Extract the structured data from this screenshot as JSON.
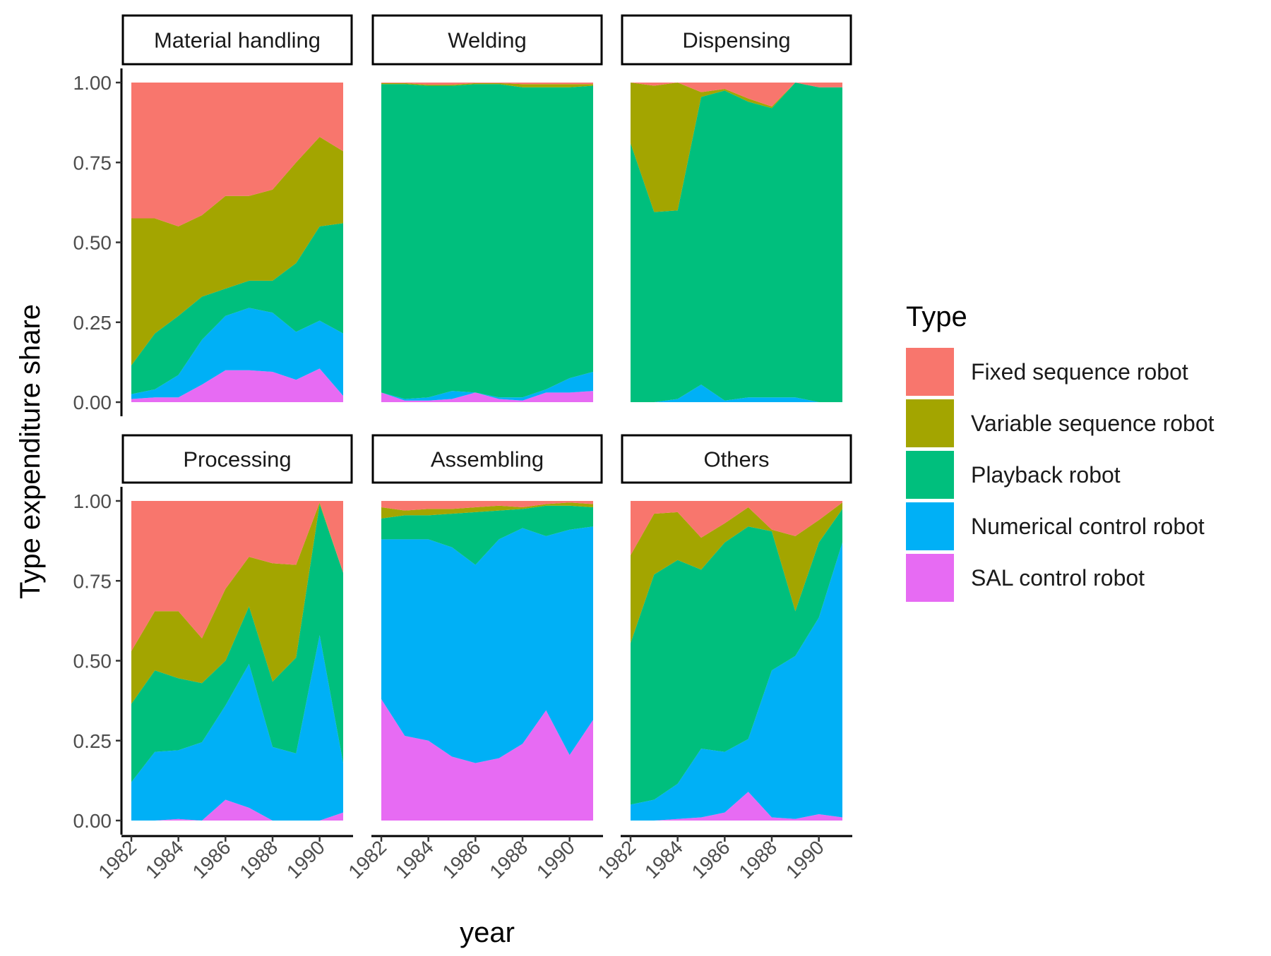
{
  "chart_data": {
    "type": "area",
    "stacked": true,
    "x_label": "year",
    "y_label": "Type expenditure share",
    "x_ticks": [
      "1982",
      "1984",
      "1986",
      "1988",
      "1990"
    ],
    "y_ticks": [
      "0.00",
      "0.25",
      "0.50",
      "0.75",
      "1.00"
    ],
    "xlim": [
      1982,
      1991
    ],
    "ylim": [
      0,
      1
    ],
    "grid": false,
    "legend": {
      "title": "Type",
      "position": "right",
      "entries": [
        {
          "name": "Fixed sequence robot",
          "color": "#F8766D"
        },
        {
          "name": "Variable sequence robot",
          "color": "#A3A500"
        },
        {
          "name": "Playback robot",
          "color": "#00BF7D"
        },
        {
          "name": "Numerical control robot",
          "color": "#00B0F6"
        },
        {
          "name": "SAL control robot",
          "color": "#E76BF3"
        }
      ]
    },
    "x": [
      1982,
      1983,
      1984,
      1985,
      1986,
      1987,
      1988,
      1989,
      1990,
      1991
    ],
    "panels": [
      {
        "name": "Material handling",
        "series": [
          {
            "name": "SAL control robot",
            "values": [
              0.01,
              0.015,
              0.015,
              0.055,
              0.1,
              0.1,
              0.095,
              0.07,
              0.105,
              0.02
            ]
          },
          {
            "name": "Numerical control robot",
            "values": [
              0.015,
              0.025,
              0.07,
              0.14,
              0.17,
              0.195,
              0.185,
              0.15,
              0.15,
              0.195
            ]
          },
          {
            "name": "Playback robot",
            "values": [
              0.09,
              0.175,
              0.185,
              0.135,
              0.085,
              0.085,
              0.1,
              0.215,
              0.295,
              0.345
            ]
          },
          {
            "name": "Variable sequence robot",
            "values": [
              0.46,
              0.36,
              0.28,
              0.255,
              0.29,
              0.265,
              0.285,
              0.315,
              0.28,
              0.225
            ]
          },
          {
            "name": "Fixed sequence robot",
            "values": [
              0.425,
              0.425,
              0.45,
              0.415,
              0.355,
              0.355,
              0.335,
              0.25,
              0.17,
              0.215
            ]
          }
        ]
      },
      {
        "name": "Welding",
        "series": [
          {
            "name": "SAL control robot",
            "values": [
              0.03,
              0.005,
              0.005,
              0.01,
              0.03,
              0.01,
              0.005,
              0.03,
              0.03,
              0.035
            ]
          },
          {
            "name": "Numerical control robot",
            "values": [
              0.0,
              0.005,
              0.01,
              0.025,
              0.0,
              0.005,
              0.01,
              0.01,
              0.045,
              0.06
            ]
          },
          {
            "name": "Playback robot",
            "values": [
              0.965,
              0.985,
              0.975,
              0.955,
              0.965,
              0.98,
              0.97,
              0.945,
              0.91,
              0.895
            ]
          },
          {
            "name": "Variable sequence robot",
            "values": [
              0.003,
              0.003,
              0.003,
              0.003,
              0.003,
              0.003,
              0.01,
              0.01,
              0.01,
              0.005
            ]
          },
          {
            "name": "Fixed sequence robot",
            "values": [
              0.002,
              0.002,
              0.007,
              0.007,
              0.002,
              0.002,
              0.005,
              0.005,
              0.005,
              0.005
            ]
          }
        ]
      },
      {
        "name": "Dispensing",
        "series": [
          {
            "name": "SAL control robot",
            "values": [
              0.0,
              0.0,
              0.0,
              0.0,
              0.0,
              0.0,
              0.0,
              0.0,
              0.0,
              0.0
            ]
          },
          {
            "name": "Numerical control robot",
            "values": [
              0.0,
              0.0,
              0.01,
              0.055,
              0.005,
              0.015,
              0.015,
              0.015,
              0.0,
              0.0
            ]
          },
          {
            "name": "Playback robot",
            "values": [
              0.81,
              0.595,
              0.59,
              0.9,
              0.97,
              0.925,
              0.905,
              0.985,
              0.985,
              0.985
            ]
          },
          {
            "name": "Variable sequence robot",
            "values": [
              0.19,
              0.395,
              0.4,
              0.015,
              0.005,
              0.01,
              0.005,
              0.0,
              0.0,
              0.0
            ]
          },
          {
            "name": "Fixed sequence robot",
            "values": [
              0.0,
              0.01,
              0.0,
              0.03,
              0.02,
              0.05,
              0.075,
              0.0,
              0.015,
              0.015
            ]
          }
        ]
      },
      {
        "name": "Processing",
        "series": [
          {
            "name": "SAL control robot",
            "values": [
              0.0,
              0.0,
              0.005,
              0.0,
              0.065,
              0.04,
              0.0,
              0.0,
              0.0,
              0.025
            ]
          },
          {
            "name": "Numerical control robot",
            "values": [
              0.12,
              0.215,
              0.215,
              0.245,
              0.295,
              0.45,
              0.23,
              0.21,
              0.58,
              0.155
            ]
          },
          {
            "name": "Playback robot",
            "values": [
              0.245,
              0.255,
              0.225,
              0.185,
              0.14,
              0.18,
              0.205,
              0.3,
              0.41,
              0.595
            ]
          },
          {
            "name": "Variable sequence robot",
            "values": [
              0.165,
              0.185,
              0.21,
              0.14,
              0.225,
              0.155,
              0.37,
              0.29,
              0.005,
              0.0
            ]
          },
          {
            "name": "Fixed sequence robot",
            "values": [
              0.47,
              0.345,
              0.345,
              0.43,
              0.275,
              0.175,
              0.195,
              0.2,
              0.005,
              0.225
            ]
          }
        ]
      },
      {
        "name": "Assembling",
        "series": [
          {
            "name": "SAL control robot",
            "values": [
              0.38,
              0.265,
              0.25,
              0.2,
              0.18,
              0.195,
              0.24,
              0.345,
              0.205,
              0.315
            ]
          },
          {
            "name": "Numerical control robot",
            "values": [
              0.5,
              0.615,
              0.63,
              0.655,
              0.62,
              0.685,
              0.675,
              0.545,
              0.705,
              0.605
            ]
          },
          {
            "name": "Playback robot",
            "values": [
              0.065,
              0.075,
              0.075,
              0.105,
              0.165,
              0.09,
              0.06,
              0.095,
              0.075,
              0.06
            ]
          },
          {
            "name": "Variable sequence robot",
            "values": [
              0.035,
              0.015,
              0.02,
              0.015,
              0.015,
              0.015,
              0.005,
              0.005,
              0.01,
              0.01
            ]
          },
          {
            "name": "Fixed sequence robot",
            "values": [
              0.02,
              0.03,
              0.025,
              0.025,
              0.02,
              0.015,
              0.02,
              0.01,
              0.005,
              0.01
            ]
          }
        ]
      },
      {
        "name": "Others",
        "series": [
          {
            "name": "SAL control robot",
            "values": [
              0.0,
              0.0,
              0.005,
              0.01,
              0.025,
              0.09,
              0.01,
              0.005,
              0.02,
              0.01
            ]
          },
          {
            "name": "Numerical control robot",
            "values": [
              0.05,
              0.065,
              0.11,
              0.215,
              0.19,
              0.165,
              0.46,
              0.51,
              0.615,
              0.86
            ]
          },
          {
            "name": "Playback robot",
            "values": [
              0.505,
              0.705,
              0.7,
              0.56,
              0.655,
              0.665,
              0.435,
              0.14,
              0.235,
              0.105
            ]
          },
          {
            "name": "Variable sequence robot",
            "values": [
              0.275,
              0.19,
              0.15,
              0.1,
              0.06,
              0.06,
              0.005,
              0.235,
              0.07,
              0.02
            ]
          },
          {
            "name": "Fixed sequence robot",
            "values": [
              0.17,
              0.04,
              0.035,
              0.115,
              0.07,
              0.02,
              0.09,
              0.11,
              0.06,
              0.005
            ]
          }
        ]
      }
    ]
  }
}
